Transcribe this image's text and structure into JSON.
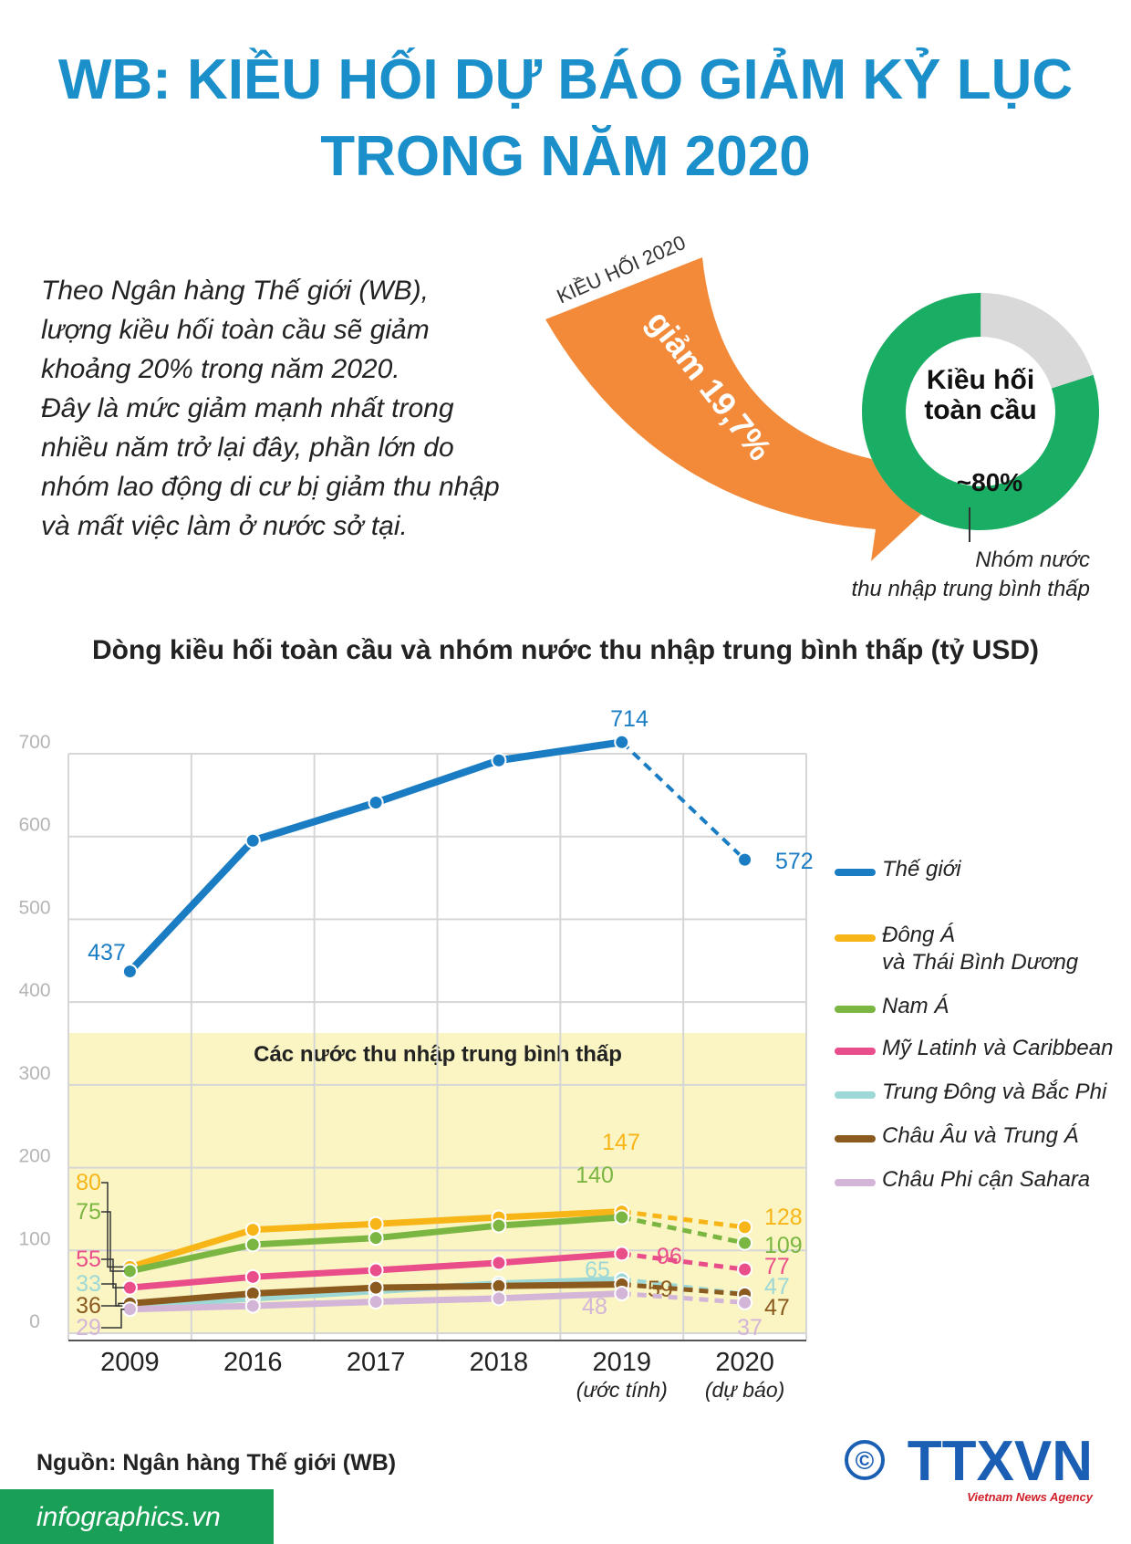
{
  "title": [
    "WB: KIỀU HỐI DỰ BÁO GIẢM KỶ LỤC",
    "TRONG NĂM 2020"
  ],
  "intro": [
    "Theo Ngân hàng Thế giới (WB),",
    "lượng kiều hối toàn cầu sẽ giảm",
    "khoảng 20% trong năm 2020.",
    "Đây là mức giảm mạnh nhất trong",
    "nhiều năm trở lại đây, phần lớn do",
    "nhóm lao động di cư bị giảm thu nhập",
    "và mất việc làm ở nước sở tại."
  ],
  "arrow": {
    "label": "KIỀU HỐI 2020",
    "text": "giảm 19,7%"
  },
  "donut": {
    "label": "Kiều hối\ntoàn cầu",
    "value": 80,
    "value_label": "~80%",
    "note": "Nhóm nước\nthu nhập trung bình thấp"
  },
  "chart_data": {
    "type": "line",
    "title": "Dòng kiều hối toàn cầu và nhóm nước thu nhập trung bình thấp (tỷ USD)",
    "band_label": "Các nước thu nhập trung bình thấp",
    "categories": [
      "2009",
      "2016",
      "2017",
      "2018",
      "2019",
      "2020"
    ],
    "category_notes": [
      null,
      null,
      null,
      null,
      "(ước tính)",
      "(dự báo)"
    ],
    "ylim": [
      0,
      700
    ],
    "yticks": [
      0,
      100,
      200,
      300,
      400,
      500,
      600,
      700
    ],
    "grid": true,
    "series": [
      {
        "name": "Thế giới",
        "color": "#1a7dc4",
        "values": [
          437,
          595,
          641,
          692,
          714,
          572
        ]
      },
      {
        "name": "Đông Á\nvà Thái Bình Dương",
        "color": "#f7b517",
        "values": [
          80,
          125,
          132,
          140,
          147,
          128
        ]
      },
      {
        "name": "Nam Á",
        "color": "#7bb642",
        "values": [
          75,
          107,
          115,
          130,
          140,
          109
        ]
      },
      {
        "name": "Mỹ Latinh và Caribbean",
        "color": "#e94e8a",
        "values": [
          55,
          68,
          76,
          85,
          96,
          77
        ]
      },
      {
        "name": "Trung Đông và Bắc Phi",
        "color": "#9dd8d6",
        "values": [
          33,
          42,
          51,
          60,
          65,
          47
        ]
      },
      {
        "name": "Châu Âu và Trung Á",
        "color": "#8b5a1e",
        "values": [
          36,
          48,
          55,
          57,
          59,
          47
        ]
      },
      {
        "name": "Châu Phi cận Sahara",
        "color": "#d3b5d8",
        "values": [
          29,
          33,
          38,
          42,
          48,
          37
        ]
      }
    ]
  },
  "source": "Nguồn: Ngân hàng Thế giới (WB)",
  "website": "infographics.vn",
  "logo": {
    "mark": "©",
    "name": "TTXVN",
    "tagline": "Vietnam News Agency"
  }
}
